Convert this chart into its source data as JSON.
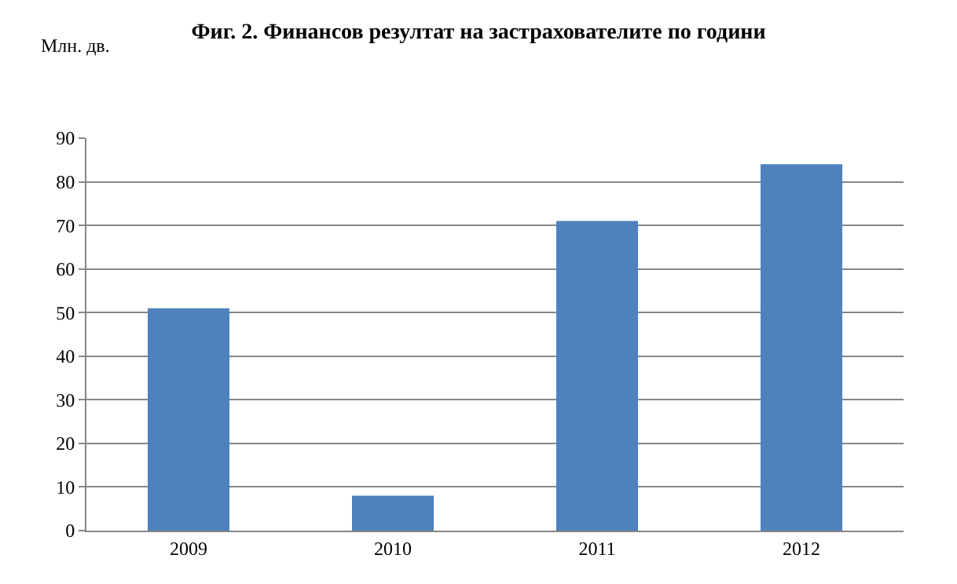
{
  "chart_data": {
    "type": "bar",
    "title": "Фиг. 2. Финансов резултат на застрахователите по години",
    "ylabel": "Млн. дв.",
    "categories": [
      "2009",
      "2010",
      "2011",
      "2012"
    ],
    "values": [
      51,
      8,
      71,
      84
    ],
    "color": "#4f81bd",
    "ylim": [
      0,
      90
    ],
    "yticks": [
      0,
      10,
      20,
      30,
      40,
      50,
      60,
      70,
      80,
      90
    ],
    "grid": "y"
  }
}
